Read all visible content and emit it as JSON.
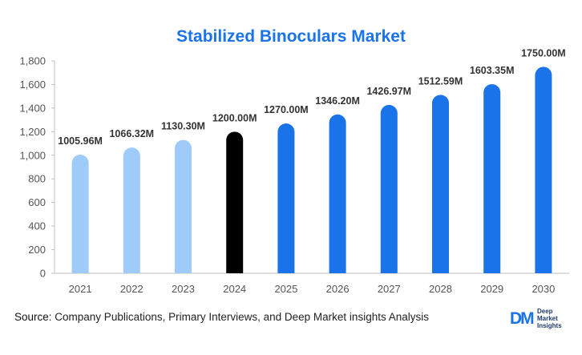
{
  "chart_data": {
    "type": "bar",
    "title": "Stabilized Binoculars Market",
    "categories": [
      "2021",
      "2022",
      "2023",
      "2024",
      "2025",
      "2026",
      "2027",
      "2028",
      "2029",
      "2030"
    ],
    "values": [
      1005.96,
      1066.32,
      1130.3,
      1200.0,
      1270.0,
      1346.2,
      1426.97,
      1512.59,
      1603.35,
      1750.0
    ],
    "data_labels": [
      "1005.96M",
      "1066.32M",
      "1130.30M",
      "1200.00M",
      "1270.00M",
      "1346.20M",
      "1426.97M",
      "1512.59M",
      "1603.35M",
      "1750.00M"
    ],
    "bar_colors": [
      "#9ecbfa",
      "#9ecbfa",
      "#9ecbfa",
      "#000000",
      "#1a73e8",
      "#1a73e8",
      "#1a73e8",
      "#1a73e8",
      "#1a73e8",
      "#1a73e8"
    ],
    "ylim": [
      0,
      1800
    ],
    "yticks": [
      0,
      200,
      400,
      600,
      800,
      1000,
      1200,
      1400,
      1600,
      1800
    ],
    "ytick_labels": [
      "0",
      "200",
      "400",
      "600",
      "800",
      "1,000",
      "1,200",
      "1,400",
      "1,600",
      "1,800"
    ],
    "xlabel": "",
    "ylabel": "",
    "grid": false,
    "legend": "none"
  },
  "source": {
    "label": "Source",
    "text": ": Company Publications, Primary Interviews, and Deep Market insights Analysis"
  },
  "logo": {
    "mark": "DM",
    "line1": "Deep",
    "line2": "Market",
    "line3": "Insights"
  },
  "colors": {
    "title": "#1a73e8",
    "historic": "#9ecbfa",
    "base_year": "#000000",
    "forecast": "#1a73e8"
  }
}
